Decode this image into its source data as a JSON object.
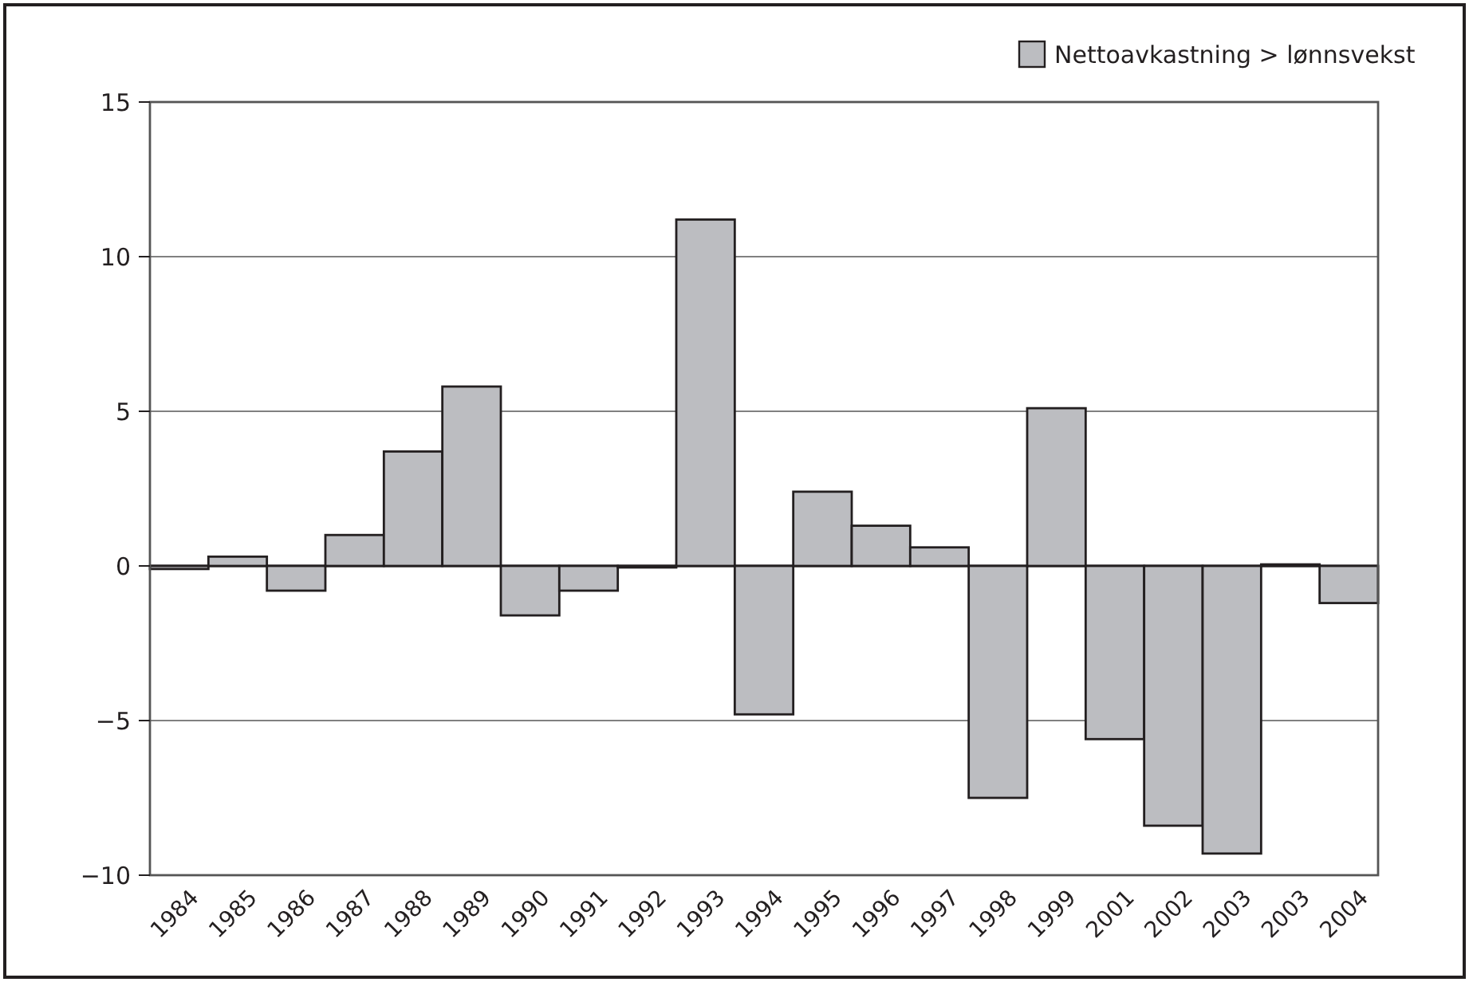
{
  "chart_data": {
    "type": "bar",
    "categories": [
      "1984",
      "1985",
      "1986",
      "1987",
      "1988",
      "1989",
      "1990",
      "1991",
      "1992",
      "1993",
      "1994",
      "1995",
      "1996",
      "1997",
      "1998",
      "1999",
      "2001",
      "2002",
      "2003",
      "2003",
      "2004"
    ],
    "series": [
      {
        "name": "Nettoavkastning > lønnsvekst",
        "color": "#bcbdc1",
        "values": [
          -0.1,
          0.3,
          -0.8,
          1.0,
          3.7,
          5.8,
          -1.6,
          -0.8,
          -0.05,
          11.2,
          -4.8,
          2.4,
          1.3,
          0.6,
          -7.5,
          5.1,
          -5.6,
          -8.4,
          -9.3,
          0.05,
          -1.2
        ]
      }
    ],
    "ylim": [
      -10,
      15
    ],
    "yticks": [
      {
        "value": -10,
        "label": "−10"
      },
      {
        "value": -5,
        "label": "−5"
      },
      0,
      5,
      10,
      15
    ],
    "grid": "y",
    "legend": "top right"
  }
}
